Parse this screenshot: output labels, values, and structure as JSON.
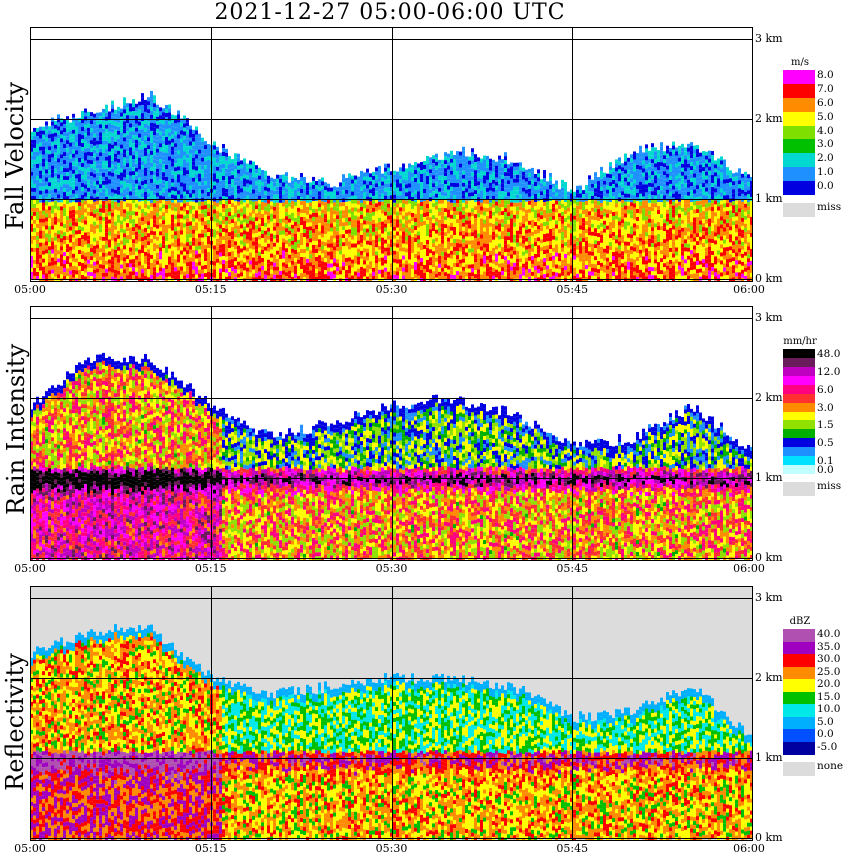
{
  "title": "2021-12-27   05:00-06:00 UTC",
  "time_ticks": [
    "05:00",
    "05:15",
    "05:30",
    "05:45",
    "06:00"
  ],
  "altitude_ticks": [
    "0 km",
    "1 km",
    "2 km",
    "3 km"
  ],
  "panels": [
    {
      "id": "fall-velocity",
      "label": "Fall Velocity",
      "unit": "m/s",
      "legend": [
        {
          "value": "8.0",
          "color": "#ff00ff"
        },
        {
          "value": "7.0",
          "color": "#ff0000"
        },
        {
          "value": "6.0",
          "color": "#ff8c00"
        },
        {
          "value": "5.0",
          "color": "#ffff00"
        },
        {
          "value": "4.0",
          "color": "#7fe000"
        },
        {
          "value": "3.0",
          "color": "#00c000"
        },
        {
          "value": "2.0",
          "color": "#00d8d0"
        },
        {
          "value": "1.0",
          "color": "#1e90ff"
        },
        {
          "value": "0.0",
          "color": "#0000e0"
        }
      ],
      "missing": {
        "value": "miss",
        "color": "#dcdcdc"
      },
      "background": "#ffffff"
    },
    {
      "id": "rain-intensity",
      "label": "Rain Intensity",
      "unit": "mm/hr",
      "legend": [
        {
          "value": "48.0",
          "color": "#000000"
        },
        {
          "value": "",
          "color": "#6a1b5a"
        },
        {
          "value": "12.0",
          "color": "#c000c0"
        },
        {
          "value": "",
          "color": "#ff00ff"
        },
        {
          "value": "6.0",
          "color": "#ff0080"
        },
        {
          "value": "",
          "color": "#ff3030"
        },
        {
          "value": "3.0",
          "color": "#ff8c00"
        },
        {
          "value": "",
          "color": "#ffff00"
        },
        {
          "value": "1.5",
          "color": "#90e000"
        },
        {
          "value": "",
          "color": "#00b000"
        },
        {
          "value": "0.5",
          "color": "#0000e0"
        },
        {
          "value": "",
          "color": "#1e90ff"
        },
        {
          "value": "0.1",
          "color": "#00e0ff"
        },
        {
          "value": "0.0",
          "color": "#c0ffff"
        }
      ],
      "missing": {
        "value": "miss",
        "color": "#dcdcdc"
      },
      "background": "#ffffff"
    },
    {
      "id": "reflectivity",
      "label": "Reflectivity",
      "unit": "dBZ",
      "legend": [
        {
          "value": "40.0",
          "color": "#b050b0"
        },
        {
          "value": "35.0",
          "color": "#a000c0"
        },
        {
          "value": "30.0",
          "color": "#ff0000"
        },
        {
          "value": "25.0",
          "color": "#ff8c00"
        },
        {
          "value": "20.0",
          "color": "#ffff00"
        },
        {
          "value": "15.0",
          "color": "#00c000"
        },
        {
          "value": "10.0",
          "color": "#00e8e8"
        },
        {
          "value": "5.0",
          "color": "#00b0ff"
        },
        {
          "value": "0.0",
          "color": "#0050ff"
        },
        {
          "value": "-5.0",
          "color": "#0000a0"
        }
      ],
      "missing": {
        "value": "none",
        "color": "#dcdcdc"
      },
      "background": "#dcdcdc"
    }
  ],
  "chart_data": {
    "type": "heatmap",
    "title": "2021-12-27   05:00-06:00 UTC",
    "xlabel": "",
    "ylabel": "",
    "x_ticks": [
      "05:00",
      "05:15",
      "05:30",
      "05:45",
      "06:00"
    ],
    "y_ticks": [
      "0 km",
      "1 km",
      "2 km",
      "3 km"
    ],
    "ylim_km": [
      0,
      3.05
    ],
    "grid": true,
    "series": [
      {
        "name": "Fall Velocity",
        "unit": "m/s",
        "melting_layer_km": 1.0,
        "cloud_top_km": [
          1.9,
          2.1,
          2.3,
          1.7,
          1.3,
          1.2,
          1.4,
          1.6,
          1.5,
          1.1,
          1.6,
          1.7,
          1.2
        ]
      },
      {
        "name": "Rain Intensity",
        "unit": "mm/hr",
        "peak_layer_km": 1.0,
        "cloud_top_km": [
          1.9,
          2.5,
          2.5,
          1.9,
          1.5,
          1.7,
          1.9,
          2.0,
          1.8,
          1.4,
          1.5,
          1.9,
          1.3
        ]
      },
      {
        "name": "Reflectivity",
        "unit": "dBZ",
        "bright_band_km": 1.0,
        "cloud_top_km": [
          2.3,
          2.6,
          2.6,
          2.0,
          1.8,
          1.9,
          2.0,
          2.0,
          1.9,
          1.5,
          1.6,
          1.9,
          1.2
        ]
      }
    ]
  }
}
